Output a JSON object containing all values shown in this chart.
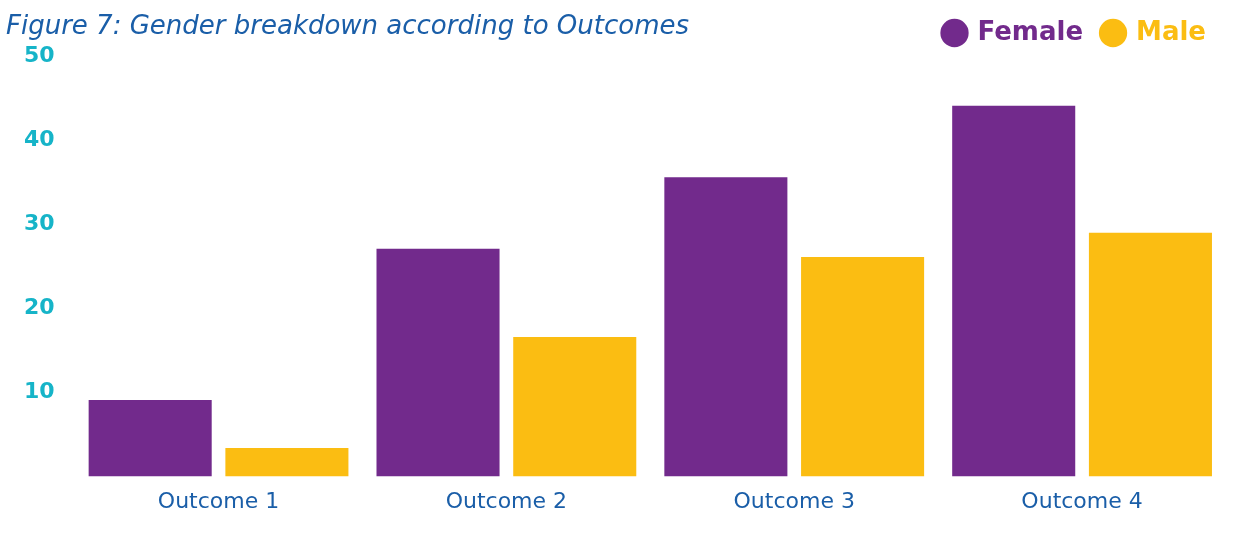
{
  "chart_data": {
    "type": "bar",
    "title": "Figure 7: Gender breakdown according to Outcomes",
    "categories": [
      "Outcome 1",
      "Outcome 2",
      "Outcome 3",
      "Outcome 4"
    ],
    "series": [
      {
        "name": "Female",
        "color": "#722a8c",
        "values": [
          9.1,
          27.1,
          35.6,
          44.1
        ]
      },
      {
        "name": "Male",
        "color": "#fbbd12",
        "values": [
          3.4,
          16.6,
          26.1,
          29
        ]
      }
    ],
    "ylim": [
      0,
      50
    ],
    "yticks": [
      10,
      20,
      30,
      40,
      50
    ],
    "grid": false,
    "legend": "top right"
  }
}
